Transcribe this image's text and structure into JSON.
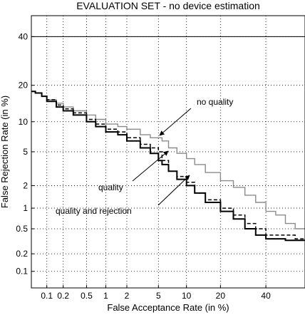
{
  "chart_data": {
    "type": "line",
    "title": "EVALUATION SET - no device estimation",
    "xlabel": "False Acceptance Rate (in %)",
    "ylabel": "False Rejection Rate (in %)",
    "x_scale": "normal-deviate",
    "y_scale": "normal-deviate",
    "xlim": [
      0.05,
      60
    ],
    "ylim": [
      0.05,
      50
    ],
    "grid": true,
    "x_ticks": [
      0.1,
      0.2,
      0.5,
      1,
      2,
      5,
      10,
      20,
      40
    ],
    "x_tick_labels": [
      "0.1",
      "0.2",
      "0.5",
      "1",
      "2",
      "5",
      "10",
      "20",
      "40"
    ],
    "y_ticks": [
      0.1,
      0.2,
      0.5,
      1,
      2,
      5,
      10,
      20,
      40
    ],
    "y_tick_labels": [
      "0.1",
      "0.2",
      "0.5",
      "1",
      "2",
      "5",
      "10",
      "20",
      "40"
    ],
    "reference_line_y": 40,
    "series": [
      {
        "name": "no quality",
        "color": "#8c8c8c",
        "dash": "solid",
        "x": [
          0.05,
          0.06,
          0.08,
          0.1,
          0.15,
          0.2,
          0.3,
          0.5,
          0.7,
          1.0,
          1.5,
          2.0,
          3.0,
          4.0,
          5.0,
          5.5,
          6.5,
          8.0,
          10.0,
          12.0,
          15.0,
          20.0,
          25.0,
          30.0,
          35.0,
          40.0,
          45.0,
          50.0,
          55.0,
          60.0
        ],
        "y": [
          18.0,
          17.5,
          16.5,
          15.5,
          14.5,
          13.5,
          12.5,
          11.5,
          10.5,
          9.5,
          9.0,
          8.5,
          7.5,
          7.0,
          7.0,
          6.5,
          5.5,
          4.8,
          4.2,
          3.6,
          2.9,
          2.3,
          1.9,
          1.5,
          1.2,
          0.9,
          0.8,
          0.6,
          0.5,
          0.5
        ]
      },
      {
        "name": "quality",
        "color": "#000000",
        "dash": "dashed",
        "x": [
          0.05,
          0.06,
          0.08,
          0.1,
          0.15,
          0.2,
          0.3,
          0.5,
          0.7,
          1.0,
          1.5,
          2.0,
          3.0,
          4.0,
          5.0,
          5.5,
          6.5,
          8.0,
          10.0,
          12.0,
          15.0,
          20.0,
          25.0,
          30.0,
          35.0,
          40.0,
          45.0,
          50.0,
          55.0,
          60.0
        ],
        "y": [
          18.0,
          17.5,
          16.5,
          15.5,
          14.0,
          13.0,
          12.0,
          10.5,
          9.5,
          8.5,
          8.0,
          7.0,
          6.0,
          5.5,
          5.0,
          4.0,
          3.0,
          2.6,
          2.2,
          1.6,
          1.3,
          1.0,
          0.8,
          0.6,
          0.5,
          0.4,
          0.4,
          0.4,
          0.35,
          0.35
        ]
      },
      {
        "name": "quality and rejection",
        "color": "#000000",
        "dash": "solid",
        "x": [
          0.05,
          0.06,
          0.08,
          0.1,
          0.15,
          0.2,
          0.3,
          0.5,
          0.7,
          1.0,
          1.5,
          2.0,
          3.0,
          4.0,
          5.0,
          5.5,
          6.5,
          8.0,
          10.0,
          12.0,
          15.0,
          20.0,
          25.0,
          30.0,
          35.0,
          40.0,
          45.0,
          50.0,
          55.0,
          60.0
        ],
        "y": [
          18.0,
          17.5,
          16.5,
          15.0,
          13.5,
          12.5,
          11.5,
          10.0,
          9.0,
          8.0,
          7.5,
          6.5,
          5.5,
          4.8,
          4.0,
          3.6,
          3.0,
          2.4,
          2.0,
          1.6,
          1.2,
          0.9,
          0.7,
          0.5,
          0.4,
          0.35,
          0.35,
          0.33,
          0.33,
          0.33
        ]
      }
    ],
    "annotations": [
      {
        "text": "no quality",
        "target_x": 5.0,
        "target_y": 7.0
      },
      {
        "text": "quality",
        "target_x": 5.0,
        "target_y": 5.0
      },
      {
        "text": "quality and rejection",
        "target_x": 8.0,
        "target_y": 2.3
      }
    ]
  }
}
